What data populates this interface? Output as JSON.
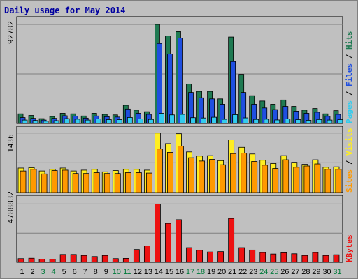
{
  "chart_data": {
    "type": "bar",
    "title": "Daily usage for May 2014",
    "categories": [
      "1",
      "2",
      "3",
      "4",
      "5",
      "6",
      "7",
      "8",
      "9",
      "10",
      "11",
      "12",
      "13",
      "14",
      "15",
      "16",
      "17",
      "18",
      "19",
      "20",
      "21",
      "22",
      "23",
      "24",
      "25",
      "26",
      "27",
      "28",
      "29",
      "30",
      "31"
    ],
    "weekend_days": [
      "3",
      "4",
      "10",
      "11",
      "17",
      "18",
      "24",
      "25",
      "31"
    ],
    "grid": true,
    "panels": [
      {
        "max_label": "92782",
        "ylim": [
          0,
          100000
        ],
        "series": [
          {
            "name": "Hits",
            "color": "#1f7a52",
            "values": [
              9000,
              7500,
              4500,
              6500,
              9500,
              9000,
              7000,
              9500,
              8500,
              8000,
              17000,
              12500,
              11000,
              92782,
              82000,
              86000,
              37000,
              30000,
              30000,
              23000,
              81000,
              46000,
              26000,
              21000,
              18000,
              22000,
              16000,
              12500,
              14000,
              9000,
              12000
            ]
          },
          {
            "name": "Files",
            "color": "#1f4fe0",
            "values": [
              5500,
              4800,
              3200,
              4800,
              7200,
              6800,
              5000,
              7000,
              6300,
              6000,
              13500,
              9500,
              8500,
              75000,
              65000,
              80000,
              29000,
              24000,
              23000,
              18000,
              58000,
              29000,
              18000,
              14500,
              13000,
              16000,
              11500,
              9500,
              10500,
              6700,
              8500
            ]
          },
          {
            "name": "Pages",
            "color": "#33ccee",
            "values": [
              3200,
              2800,
              2100,
              2600,
              4500,
              4000,
              3200,
              4300,
              3600,
              3600,
              5600,
              4200,
              3800,
              9500,
              8000,
              8500,
              5400,
              5100,
              5800,
              3900,
              8200,
              5200,
              3800,
              4000,
              3300,
              4200,
              3600,
              3000,
              3700,
              3200,
              3600
            ]
          }
        ]
      },
      {
        "max_label": "1436",
        "ylim": [
          0,
          1600
        ],
        "series": [
          {
            "name": "Visits",
            "color": "#ffee22",
            "values": [
              590,
              600,
              520,
              560,
              590,
              520,
              540,
              560,
              500,
              530,
              560,
              560,
              540,
              1436,
              1180,
              1420,
              980,
              880,
              890,
              770,
              1270,
              1090,
              930,
              780,
              700,
              890,
              730,
              680,
              790,
              610,
              620
            ]
          },
          {
            "name": "Sites",
            "color": "#ff9900",
            "values": [
              520,
              560,
              450,
              530,
              540,
              460,
              460,
              480,
              460,
              460,
              480,
              480,
              470,
              1050,
              970,
              1120,
              840,
              760,
              800,
              670,
              940,
              950,
              750,
              660,
              580,
              790,
              610,
              640,
              690,
              560,
              560
            ]
          }
        ]
      },
      {
        "max_label": "4788832",
        "ylim": [
          0,
          5500000
        ],
        "series": [
          {
            "name": "KBytes",
            "color": "#ee1111",
            "values": [
              300000,
              330000,
              260000,
              250000,
              640000,
              640000,
              560000,
              470000,
              560000,
              300000,
              320000,
              1050000,
              1350000,
              4788832,
              3200000,
              3500000,
              1200000,
              990000,
              850000,
              880000,
              3600000,
              1200000,
              1010000,
              800000,
              680000,
              780000,
              700000,
              560000,
              800000,
              560000,
              620000
            ]
          }
        ]
      }
    ]
  }
}
